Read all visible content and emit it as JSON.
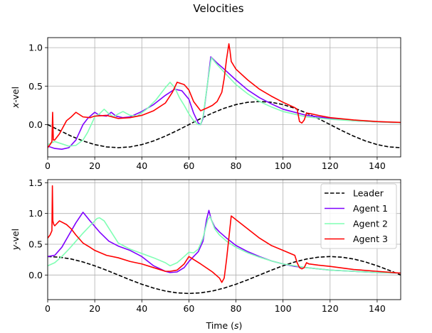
{
  "figure": {
    "title": "Velocities"
  },
  "chart_data": [
    {
      "type": "line",
      "name": "x-velocity panel",
      "ylabel_pre": "x",
      "ylabel_post": "-vel",
      "xlabel": "",
      "xlim": [
        0,
        150
      ],
      "ylim": [
        -0.42,
        1.13
      ],
      "xticks": [
        0,
        20,
        40,
        60,
        80,
        100,
        120,
        140
      ],
      "yticks": [
        0.0,
        0.5,
        1.0
      ],
      "ytick_labels": [
        "0.0",
        "0.5",
        "1.0"
      ],
      "grid": true,
      "legend": false,
      "series": [
        {
          "name": "Leader",
          "color": "#000000",
          "dash": true,
          "x": [
            0,
            5,
            10,
            15,
            20,
            25,
            30,
            35,
            40,
            45,
            50,
            55,
            60,
            65,
            70,
            75,
            80,
            85,
            90,
            95,
            100,
            105,
            110,
            115,
            120,
            125,
            130,
            135,
            140,
            145,
            150
          ],
          "y": [
            0,
            -0.075,
            -0.15,
            -0.212,
            -0.26,
            -0.29,
            -0.3,
            -0.29,
            -0.26,
            -0.212,
            -0.15,
            -0.078,
            0,
            0.078,
            0.15,
            0.212,
            0.26,
            0.29,
            0.3,
            0.29,
            0.26,
            0.212,
            0.15,
            0.078,
            0,
            -0.078,
            -0.15,
            -0.212,
            -0.26,
            -0.29,
            -0.3
          ]
        },
        {
          "name": "Agent 1",
          "color": "#7f00ff",
          "dash": false,
          "x": [
            0,
            3,
            6,
            9,
            12,
            15,
            17,
            20,
            22,
            25,
            27,
            29,
            32,
            35,
            40,
            45,
            50,
            54,
            57,
            60,
            62,
            64,
            65,
            66,
            68,
            69.3,
            72,
            75,
            80,
            85,
            90,
            95,
            100,
            110,
            120,
            130,
            140,
            150
          ],
          "y": [
            -0.28,
            -0.31,
            -0.32,
            -0.3,
            -0.2,
            0.0,
            0.08,
            0.16,
            0.12,
            0.11,
            0.16,
            0.11,
            0.09,
            0.1,
            0.17,
            0.26,
            0.38,
            0.46,
            0.44,
            0.33,
            0.15,
            0.02,
            0.0,
            0.08,
            0.55,
            0.88,
            0.8,
            0.72,
            0.58,
            0.45,
            0.35,
            0.27,
            0.2,
            0.12,
            0.08,
            0.05,
            0.035,
            0.025
          ]
        },
        {
          "name": "Agent 2",
          "color": "#80ffb4",
          "dash": false,
          "x": [
            0,
            3,
            6,
            9,
            12,
            15,
            17,
            20,
            22,
            24,
            26,
            28,
            30,
            32,
            35,
            38,
            42,
            46,
            50,
            52,
            54,
            56,
            58,
            60,
            62,
            64,
            65,
            66,
            68,
            69.5,
            72,
            75,
            80,
            85,
            90,
            95,
            100,
            110,
            120,
            130,
            140,
            150
          ],
          "y": [
            -0.26,
            -0.22,
            -0.25,
            -0.28,
            -0.27,
            -0.2,
            -0.1,
            0.1,
            0.14,
            0.2,
            0.14,
            0.1,
            0.14,
            0.17,
            0.12,
            0.11,
            0.2,
            0.32,
            0.48,
            0.55,
            0.48,
            0.35,
            0.25,
            0.14,
            0.05,
            0.0,
            0.0,
            0.1,
            0.55,
            0.87,
            0.78,
            0.68,
            0.52,
            0.4,
            0.3,
            0.23,
            0.17,
            0.1,
            0.07,
            0.05,
            0.035,
            0.025
          ]
        },
        {
          "name": "Agent 3",
          "color": "#ff0000",
          "dash": false,
          "x": [
            0,
            1,
            1.8,
            2.1,
            2.4,
            3,
            5,
            8,
            10,
            12,
            15,
            18,
            20,
            25,
            30,
            35,
            40,
            45,
            50,
            53,
            55,
            58,
            60,
            62,
            65,
            68,
            70,
            72,
            74,
            75,
            76,
            77,
            77.5,
            78,
            80,
            85,
            90,
            95,
            100,
            105,
            106,
            107,
            108,
            109,
            110,
            112,
            115,
            120,
            130,
            140,
            150
          ],
          "y": [
            -0.3,
            -0.26,
            -0.22,
            0.16,
            -0.2,
            -0.2,
            -0.12,
            0.05,
            0.1,
            0.16,
            0.1,
            0.09,
            0.11,
            0.12,
            0.08,
            0.09,
            0.12,
            0.18,
            0.28,
            0.42,
            0.55,
            0.52,
            0.45,
            0.3,
            0.18,
            0.22,
            0.25,
            0.3,
            0.42,
            0.6,
            0.85,
            1.05,
            0.95,
            0.82,
            0.72,
            0.58,
            0.46,
            0.37,
            0.29,
            0.22,
            0.2,
            0.04,
            0.02,
            0.06,
            0.15,
            0.14,
            0.12,
            0.09,
            0.06,
            0.04,
            0.028
          ]
        }
      ]
    },
    {
      "type": "line",
      "name": "y-velocity panel",
      "ylabel_pre": "y",
      "ylabel_post": "-vel",
      "xlabel_pre": "Time (",
      "xlabel_var": "s",
      "xlabel_post": ")",
      "xlim": [
        0,
        150
      ],
      "ylim": [
        -0.4,
        1.55
      ],
      "xticks": [
        0,
        20,
        40,
        60,
        80,
        100,
        120,
        140
      ],
      "yticks": [
        0.0,
        0.5,
        1.0,
        1.5
      ],
      "ytick_labels": [
        "0.0",
        "0.5",
        "1.0",
        "1.5"
      ],
      "grid": true,
      "legend": true,
      "legend_position": "top-right",
      "series": [
        {
          "name": "Leader",
          "color": "#000000",
          "dash": true,
          "x": [
            0,
            5,
            10,
            15,
            20,
            25,
            30,
            35,
            40,
            45,
            50,
            55,
            60,
            65,
            70,
            75,
            80,
            85,
            90,
            95,
            100,
            105,
            110,
            115,
            120,
            125,
            130,
            135,
            140,
            145,
            150
          ],
          "y": [
            0.3,
            0.29,
            0.26,
            0.212,
            0.15,
            0.078,
            0,
            -0.078,
            -0.15,
            -0.212,
            -0.26,
            -0.29,
            -0.3,
            -0.29,
            -0.26,
            -0.212,
            -0.15,
            -0.078,
            0,
            0.078,
            0.15,
            0.212,
            0.26,
            0.29,
            0.3,
            0.29,
            0.26,
            0.212,
            0.15,
            0.078,
            0
          ]
        },
        {
          "name": "Agent 1",
          "color": "#7f00ff",
          "dash": false,
          "x": [
            0,
            3,
            6,
            9,
            12,
            15,
            18,
            22,
            26,
            30,
            35,
            40,
            45,
            50,
            52,
            55,
            58,
            60,
            62,
            64,
            66,
            67.5,
            68.5,
            69.5,
            71,
            73,
            76,
            80,
            85,
            90,
            95,
            100,
            105,
            110,
            115,
            120,
            130,
            140,
            150
          ],
          "y": [
            0.3,
            0.32,
            0.45,
            0.65,
            0.85,
            1.02,
            0.88,
            0.7,
            0.55,
            0.47,
            0.4,
            0.3,
            0.15,
            0.06,
            0.04,
            0.05,
            0.12,
            0.22,
            0.3,
            0.38,
            0.55,
            0.9,
            1.05,
            0.9,
            0.78,
            0.7,
            0.6,
            0.48,
            0.38,
            0.3,
            0.23,
            0.18,
            0.14,
            0.12,
            0.1,
            0.08,
            0.06,
            0.04,
            0.03
          ]
        },
        {
          "name": "Agent 2",
          "color": "#80ffb4",
          "dash": false,
          "x": [
            0,
            3,
            6,
            9,
            12,
            15,
            18,
            21,
            22,
            24,
            27,
            30,
            35,
            40,
            45,
            50,
            52,
            55,
            58,
            60,
            62,
            64,
            66,
            68,
            69,
            71,
            73,
            76,
            80,
            85,
            90,
            95,
            100,
            105,
            110,
            115,
            120,
            130,
            140,
            150
          ],
          "y": [
            0.15,
            0.2,
            0.3,
            0.42,
            0.55,
            0.68,
            0.8,
            0.92,
            0.93,
            0.88,
            0.7,
            0.52,
            0.42,
            0.35,
            0.28,
            0.2,
            0.15,
            0.2,
            0.3,
            0.37,
            0.36,
            0.42,
            0.6,
            0.9,
            0.95,
            0.75,
            0.65,
            0.55,
            0.45,
            0.36,
            0.29,
            0.23,
            0.18,
            0.15,
            0.12,
            0.1,
            0.08,
            0.06,
            0.04,
            0.03
          ]
        },
        {
          "name": "Agent 3",
          "color": "#ff0000",
          "dash": false,
          "x": [
            0,
            1,
            1.8,
            2.0,
            2.2,
            2.6,
            3,
            5,
            8,
            10,
            12,
            15,
            18,
            20,
            25,
            30,
            35,
            40,
            45,
            50,
            52,
            55,
            58,
            60,
            65,
            70,
            73,
            74,
            75,
            76,
            78,
            80,
            85,
            90,
            95,
            100,
            105,
            106,
            107,
            108,
            109,
            110,
            111,
            113,
            115,
            120,
            130,
            140,
            150
          ],
          "y": [
            0.6,
            0.65,
            0.72,
            1.45,
            0.88,
            0.82,
            0.8,
            0.88,
            0.82,
            0.75,
            0.65,
            0.52,
            0.45,
            0.4,
            0.32,
            0.28,
            0.22,
            0.18,
            0.12,
            0.06,
            0.06,
            0.08,
            0.18,
            0.3,
            0.18,
            0.05,
            -0.05,
            -0.12,
            -0.05,
            0.25,
            0.96,
            0.9,
            0.75,
            0.6,
            0.48,
            0.4,
            0.32,
            0.2,
            0.12,
            0.1,
            0.12,
            0.2,
            0.18,
            0.17,
            0.16,
            0.14,
            0.09,
            0.06,
            0.03
          ]
        }
      ]
    }
  ]
}
